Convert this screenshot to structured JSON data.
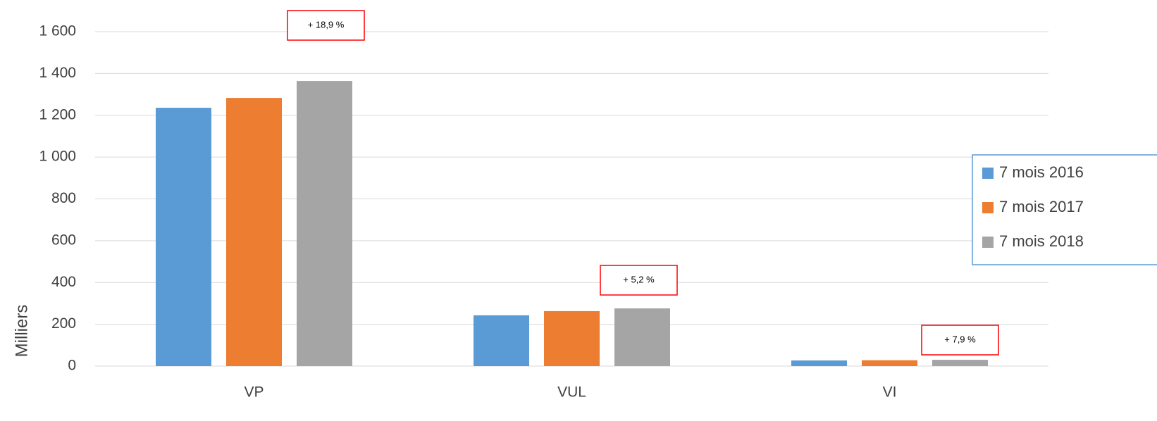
{
  "chart_data": {
    "type": "bar",
    "y_label": "Milliers",
    "categories": [
      "VP",
      "VUL",
      "VI"
    ],
    "series": [
      {
        "name": "7 mois 2016",
        "color": "#5b9bd5",
        "values": [
          1236,
          243,
          27
        ]
      },
      {
        "name": "7 mois 2017",
        "color": "#ed7d31",
        "values": [
          1283,
          263,
          28
        ]
      },
      {
        "name": "7 mois 2018",
        "color": "#a5a5a5",
        "values": [
          1364,
          276,
          30
        ]
      }
    ],
    "annotations": [
      "+ 18,9 %",
      "+ 5,2 %",
      "+ 7,9 %"
    ],
    "ylim": [
      0,
      1600
    ],
    "yticks": [
      0,
      200,
      400,
      600,
      800,
      {
        "value": 1000,
        "label": "1 000"
      },
      {
        "value": 1200,
        "label": "1 200"
      },
      {
        "value": 1400,
        "label": "1 400"
      },
      {
        "value": 1600,
        "label": "1 600"
      }
    ],
    "grid": true,
    "legend": "right"
  }
}
